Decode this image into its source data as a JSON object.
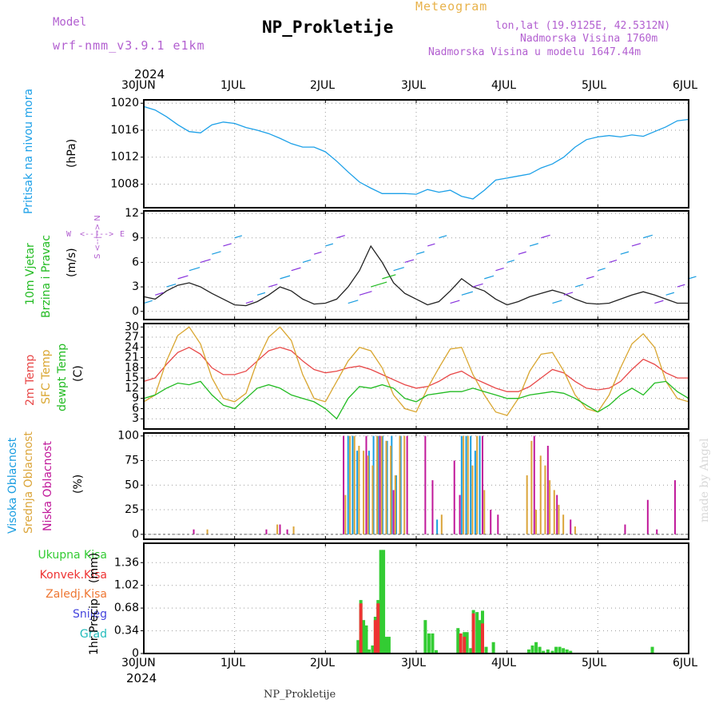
{
  "header": {
    "model_label": "Model",
    "model_name": "wrf-nmm_v3.9.1  e1km",
    "title": "NP_Prokletije",
    "meteogram_label": "Meteogram",
    "lonlat": "lon,lat (19.9125E, 42.5312N)",
    "altitude": "Nadmorska Visina 1760m",
    "model_altitude": "Nadmorska Visina u modelu 1647.44m",
    "year_top": "2024",
    "year_bottom": "2024",
    "footer": "NP_Prokletije",
    "watermark": "made by Angel"
  },
  "colors": {
    "pressure": "#1ca0e8",
    "wind_label": "#22bb22",
    "temp_2m": "#e84848",
    "temp_sfc": "#d9a630",
    "dewpoint": "#22bb22",
    "cloud_high": "#1a9de0",
    "cloud_mid": "#dba53a",
    "cloud_low": "#c0189a",
    "precip_total": "#33cc33",
    "precip_conv": "#ee3333",
    "precip_frozen": "#ee7733",
    "snow": "#4444dd",
    "graupel": "#22bbbb",
    "wind_dir_label": "#b25fd0"
  },
  "chart_data": [
    {
      "type": "line",
      "panel": "pressure",
      "labels": [
        "Pritisak na nivou mora",
        "(hPa)"
      ],
      "x_ticks": [
        "30JUN",
        "1JUL",
        "2JUL",
        "3JUL",
        "4JUL",
        "5JUL",
        "6JUL"
      ],
      "x_range_days": [
        0,
        6
      ],
      "ylim": [
        1004.5,
        1020.5
      ],
      "y_ticks": [
        1008,
        1012,
        1016,
        1020
      ],
      "grid": true,
      "series": [
        {
          "x": [
            0,
            0.125,
            0.25,
            0.375,
            0.5,
            0.625,
            0.75,
            0.875,
            1.0,
            1.125,
            1.25,
            1.375,
            1.5,
            1.625,
            1.75,
            1.875,
            2.0,
            2.125,
            2.25,
            2.375,
            2.5,
            2.625,
            2.75,
            2.875,
            3.0,
            3.125,
            3.25,
            3.375,
            3.5,
            3.625,
            3.75,
            3.875,
            4.0,
            4.125,
            4.25,
            4.375,
            4.5,
            4.625,
            4.75,
            4.875,
            5.0,
            5.125,
            5.25,
            5.375,
            5.5,
            5.625,
            5.75,
            5.875,
            6.0
          ],
          "y": [
            1019.5,
            1019.0,
            1018.0,
            1016.8,
            1015.8,
            1015.6,
            1016.8,
            1017.2,
            1017.0,
            1016.4,
            1016.0,
            1015.5,
            1014.8,
            1014.0,
            1013.5,
            1013.5,
            1012.8,
            1011.4,
            1009.8,
            1008.3,
            1007.4,
            1006.6,
            1006.6,
            1006.6,
            1006.5,
            1007.2,
            1006.8,
            1007.1,
            1006.2,
            1005.8,
            1007.1,
            1008.6,
            1008.9,
            1009.2,
            1009.5,
            1010.4,
            1011.0,
            1012.0,
            1013.5,
            1014.6,
            1015.0,
            1015.2,
            1015.0,
            1015.3,
            1015.1,
            1015.8,
            1016.5,
            1017.4,
            1017.6
          ]
        }
      ]
    },
    {
      "type": "line",
      "panel": "wind",
      "labels": [
        "10m Vjetar",
        "Brzina i Pravac",
        "(m/s)"
      ],
      "direction_key": [
        "W",
        "<--|-->",
        "E",
        "S <--|--> N"
      ],
      "x_range_days": [
        0,
        6
      ],
      "ylim": [
        -1,
        12.3
      ],
      "y_ticks": [
        0,
        3,
        6,
        9,
        12
      ],
      "grid": true,
      "series": [
        {
          "name": "speed",
          "x": [
            0,
            0.125,
            0.25,
            0.375,
            0.5,
            0.625,
            0.75,
            0.875,
            1.0,
            1.125,
            1.25,
            1.375,
            1.5,
            1.625,
            1.75,
            1.875,
            2.0,
            2.125,
            2.25,
            2.375,
            2.5,
            2.625,
            2.75,
            2.875,
            3.0,
            3.125,
            3.25,
            3.375,
            3.5,
            3.625,
            3.75,
            3.875,
            4.0,
            4.125,
            4.25,
            4.375,
            4.5,
            4.625,
            4.75,
            4.875,
            5.0,
            5.125,
            5.25,
            5.375,
            5.5,
            5.625,
            5.75,
            5.875,
            6.0
          ],
          "y": [
            1.8,
            1.5,
            2.5,
            3.2,
            3.5,
            3.0,
            2.2,
            1.5,
            0.8,
            0.7,
            1.2,
            2.0,
            3.0,
            2.5,
            1.5,
            0.9,
            1.0,
            1.5,
            3.0,
            5.0,
            8.0,
            6.0,
            3.5,
            2.2,
            1.5,
            0.8,
            1.2,
            2.5,
            4.0,
            3.0,
            2.5,
            1.5,
            0.8,
            1.2,
            1.8,
            2.2,
            2.6,
            2.2,
            1.5,
            1.0,
            0.9,
            1.0,
            1.5,
            2.0,
            2.4,
            2.0,
            1.5,
            1.0,
            1.0
          ]
        }
      ]
    },
    {
      "type": "line",
      "panel": "temperature",
      "labels": [
        "2m Temp",
        "SFC Temp",
        "dewpt Temp",
        "(C)"
      ],
      "x_range_days": [
        0,
        6
      ],
      "ylim": [
        0,
        31
      ],
      "y_ticks": [
        3,
        6,
        9,
        12,
        15,
        18,
        21,
        24,
        27,
        30
      ],
      "grid": true,
      "series": [
        {
          "name": "2m Temp",
          "x": [
            0,
            0.125,
            0.25,
            0.375,
            0.5,
            0.625,
            0.75,
            0.875,
            1.0,
            1.125,
            1.25,
            1.375,
            1.5,
            1.625,
            1.75,
            1.875,
            2.0,
            2.125,
            2.25,
            2.375,
            2.5,
            2.625,
            2.75,
            2.875,
            3.0,
            3.125,
            3.25,
            3.375,
            3.5,
            3.625,
            3.75,
            3.875,
            4.0,
            4.125,
            4.25,
            4.375,
            4.5,
            4.625,
            4.75,
            4.875,
            5.0,
            5.125,
            5.25,
            5.375,
            5.5,
            5.625,
            5.75,
            5.875,
            6.0
          ],
          "y": [
            14,
            15,
            19,
            22.5,
            24,
            22,
            18,
            16,
            16,
            17,
            20,
            23,
            24,
            23,
            20,
            17.5,
            16.5,
            17,
            18,
            18.5,
            17.5,
            16,
            14.5,
            13,
            12,
            12.5,
            14,
            16,
            17,
            15,
            13.5,
            12,
            11,
            11,
            12.5,
            15,
            17.5,
            16.5,
            14,
            12,
            11.5,
            12,
            14,
            17.5,
            20.5,
            19,
            16.5,
            15,
            15
          ]
        },
        {
          "name": "SFC Temp",
          "x": [
            0,
            0.125,
            0.25,
            0.375,
            0.5,
            0.625,
            0.75,
            0.875,
            1.0,
            1.125,
            1.25,
            1.375,
            1.5,
            1.625,
            1.75,
            1.875,
            2.0,
            2.125,
            2.25,
            2.375,
            2.5,
            2.625,
            2.75,
            2.875,
            3.0,
            3.125,
            3.25,
            3.375,
            3.5,
            3.625,
            3.75,
            3.875,
            4.0,
            4.125,
            4.25,
            4.375,
            4.5,
            4.625,
            4.75,
            4.875,
            5.0,
            5.125,
            5.25,
            5.375,
            5.5,
            5.625,
            5.75,
            5.875,
            6.0
          ],
          "y": [
            8,
            10,
            20,
            27.5,
            30,
            25,
            15,
            9,
            8,
            10.5,
            20,
            27,
            30,
            26,
            16,
            9,
            8,
            14,
            20,
            24,
            23,
            18,
            10,
            6,
            5,
            12,
            18,
            23.5,
            24,
            16,
            10,
            5,
            4,
            9,
            17,
            22,
            22.5,
            17,
            10,
            6,
            5,
            10,
            18,
            25,
            28,
            24,
            14,
            9,
            8
          ]
        },
        {
          "name": "dewpt Temp",
          "x": [
            0,
            0.125,
            0.25,
            0.375,
            0.5,
            0.625,
            0.75,
            0.875,
            1.0,
            1.125,
            1.25,
            1.375,
            1.5,
            1.625,
            1.75,
            1.875,
            2.0,
            2.125,
            2.25,
            2.375,
            2.5,
            2.625,
            2.75,
            2.875,
            3.0,
            3.125,
            3.25,
            3.375,
            3.5,
            3.625,
            3.75,
            3.875,
            4.0,
            4.125,
            4.25,
            4.375,
            4.5,
            4.625,
            4.75,
            4.875,
            5.0,
            5.125,
            5.25,
            5.375,
            5.5,
            5.625,
            5.75,
            5.875,
            6.0
          ],
          "y": [
            9,
            10,
            12,
            13.5,
            13,
            14,
            10,
            7,
            6,
            9,
            12,
            13,
            12,
            10,
            9,
            8,
            6,
            3,
            9,
            12.5,
            12,
            13,
            12,
            9,
            8,
            10,
            10.5,
            11,
            11,
            12,
            11,
            10,
            9,
            9,
            10,
            10.5,
            11,
            10.5,
            9,
            7,
            5,
            7,
            10,
            12,
            10,
            13.5,
            14,
            11,
            9
          ]
        }
      ]
    },
    {
      "type": "bar",
      "panel": "clouds",
      "labels": [
        "Visoka Oblacnost",
        "Srednja Oblacnost",
        "Niska Oblacnost",
        "(%)"
      ],
      "x_range_days": [
        0,
        6
      ],
      "ylim": [
        -5,
        103
      ],
      "y_ticks": [
        0,
        25,
        50,
        75,
        100
      ],
      "grid": true,
      "series": [
        {
          "name": "Visoka Oblacnost",
          "x": [
            2.25,
            2.3,
            2.35,
            2.48,
            2.53,
            2.58,
            2.63,
            2.68,
            2.73,
            2.78,
            2.83,
            3.23,
            3.5,
            3.55,
            3.6,
            3.65,
            3.7
          ],
          "y": [
            100,
            100,
            85,
            85,
            100,
            100,
            100,
            95,
            100,
            60,
            100,
            15,
            100,
            100,
            100,
            85,
            100
          ]
        },
        {
          "name": "Srednja Oblacnost",
          "x": [
            0.7,
            1.47,
            1.65,
            2.22,
            2.27,
            2.32,
            2.37,
            2.42,
            2.47,
            2.52,
            2.57,
            2.62,
            2.67,
            2.72,
            2.77,
            2.82,
            2.87,
            3.28,
            3.52,
            3.57,
            3.62,
            3.67,
            3.75,
            4.22,
            4.27,
            4.32,
            4.37,
            4.42,
            4.47,
            4.52,
            4.57,
            4.62,
            4.75
          ],
          "y": [
            5,
            10,
            8,
            40,
            100,
            100,
            90,
            85,
            80,
            70,
            100,
            100,
            95,
            90,
            60,
            100,
            100,
            20,
            100,
            100,
            70,
            100,
            45,
            60,
            95,
            25,
            80,
            70,
            55,
            45,
            30,
            20,
            8
          ]
        },
        {
          "name": "Niska Oblacnost",
          "x": [
            0.55,
            1.35,
            1.5,
            1.58,
            2.2,
            2.45,
            2.6,
            2.75,
            2.9,
            3.1,
            3.18,
            3.42,
            3.48,
            3.73,
            3.82,
            3.9,
            4.3,
            4.45,
            4.55,
            4.7,
            5.3,
            5.55,
            5.65,
            5.85
          ],
          "y": [
            5,
            5,
            10,
            5,
            100,
            100,
            100,
            45,
            100,
            100,
            55,
            75,
            40,
            100,
            25,
            20,
            100,
            90,
            40,
            15,
            10,
            35,
            5,
            55
          ]
        }
      ]
    },
    {
      "type": "bar",
      "panel": "precipitation",
      "labels": [
        "1hr Precip",
        "(mm)"
      ],
      "legend": [
        "Ukupna Kisa",
        "Konvek.Kisa",
        "Zaledj.Kisa",
        "Snijeg",
        "Grad"
      ],
      "x_ticks": [
        "30JUN",
        "1JUL",
        "2JUL",
        "3JUL",
        "4JUL",
        "5JUL",
        "6JUL"
      ],
      "x_range_days": [
        0,
        6
      ],
      "ylim": [
        0,
        1.65
      ],
      "y_ticks": [
        0,
        0.34,
        0.68,
        1.02,
        1.36
      ],
      "grid": true,
      "series": [
        {
          "name": "Ukupna Kisa",
          "x": [
            2.36,
            2.39,
            2.42,
            2.45,
            2.48,
            2.52,
            2.55,
            2.58,
            2.61,
            2.64,
            2.67,
            2.7,
            3.1,
            3.14,
            3.18,
            3.22,
            3.46,
            3.49,
            3.53,
            3.56,
            3.6,
            3.63,
            3.67,
            3.7,
            3.73,
            3.77,
            3.85,
            4.24,
            4.28,
            4.32,
            4.36,
            4.4,
            4.45,
            4.5,
            4.54,
            4.58,
            4.62,
            4.66,
            4.7,
            5.6
          ],
          "y": [
            0.2,
            0.8,
            0.5,
            0.42,
            0.06,
            0.12,
            0.55,
            0.8,
            1.55,
            1.55,
            0.25,
            0.25,
            0.5,
            0.3,
            0.3,
            0.05,
            0.38,
            0.05,
            0.32,
            0.32,
            0.08,
            0.65,
            0.62,
            0.5,
            0.64,
            0.1,
            0.17,
            0.06,
            0.12,
            0.17,
            0.1,
            0.04,
            0.06,
            0.04,
            0.1,
            0.1,
            0.08,
            0.06,
            0.04,
            0.1
          ]
        },
        {
          "name": "Konvek.Kisa",
          "x": [
            2.39,
            2.55,
            2.58,
            3.49,
            3.53,
            3.63,
            3.73
          ],
          "y": [
            0.75,
            0.5,
            0.75,
            0.3,
            0.25,
            0.6,
            0.45
          ]
        }
      ]
    }
  ]
}
